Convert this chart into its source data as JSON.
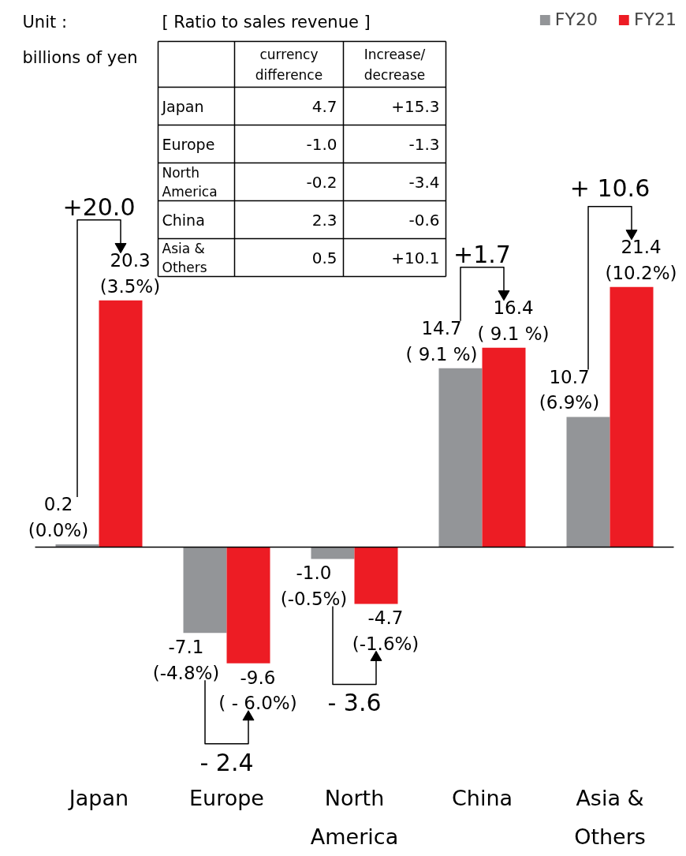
{
  "chart_data": {
    "type": "bar",
    "categories": [
      "Japan",
      "Europe",
      "North America",
      "China",
      "Asia & Others"
    ],
    "ylim": [
      -25.5,
      45
    ],
    "tick_labels": "x",
    "grid": false,
    "legend": "top right",
    "series": [
      {
        "name": "FY20",
        "color": "#939598",
        "values": [
          0.2,
          -7.1,
          -1.0,
          14.7,
          10.7
        ],
        "value_labels": [
          "0.2\n(0.0%)",
          "-7.1\n(-4.8%)",
          "-1.0\n(-0.5%)",
          "14.7\n( 9.1 %)",
          "10.7\n(6.9%)"
        ]
      },
      {
        "name": "FY21",
        "color": "#ed1c24",
        "values": [
          20.3,
          -9.6,
          -4.7,
          16.4,
          21.4
        ],
        "value_labels": [
          "20.3\n(3.5%)",
          "-9.6\n( - 6.0%)",
          "-4.7\n(-1.6%)",
          "16.4\n( 9.1 %)",
          "21.4\n(10.2%)"
        ]
      }
    ],
    "annotations": [
      "Unit :\nbillions of yen",
      "[ Ratio to sales revenue ]",
      "currency difference",
      "Increase/ decrease",
      "Japan",
      "4.7",
      "+15.3",
      "Europe",
      "-1.0",
      "-1.3",
      "North America",
      "-0.2",
      "-3.4",
      "China",
      "2.3",
      "-0.6",
      "Asia & Others",
      "0.5",
      "+10.1",
      "+20.0",
      "- 2.4",
      "- 3.6",
      "+1.7",
      "+ 10.6"
    ]
  }
}
